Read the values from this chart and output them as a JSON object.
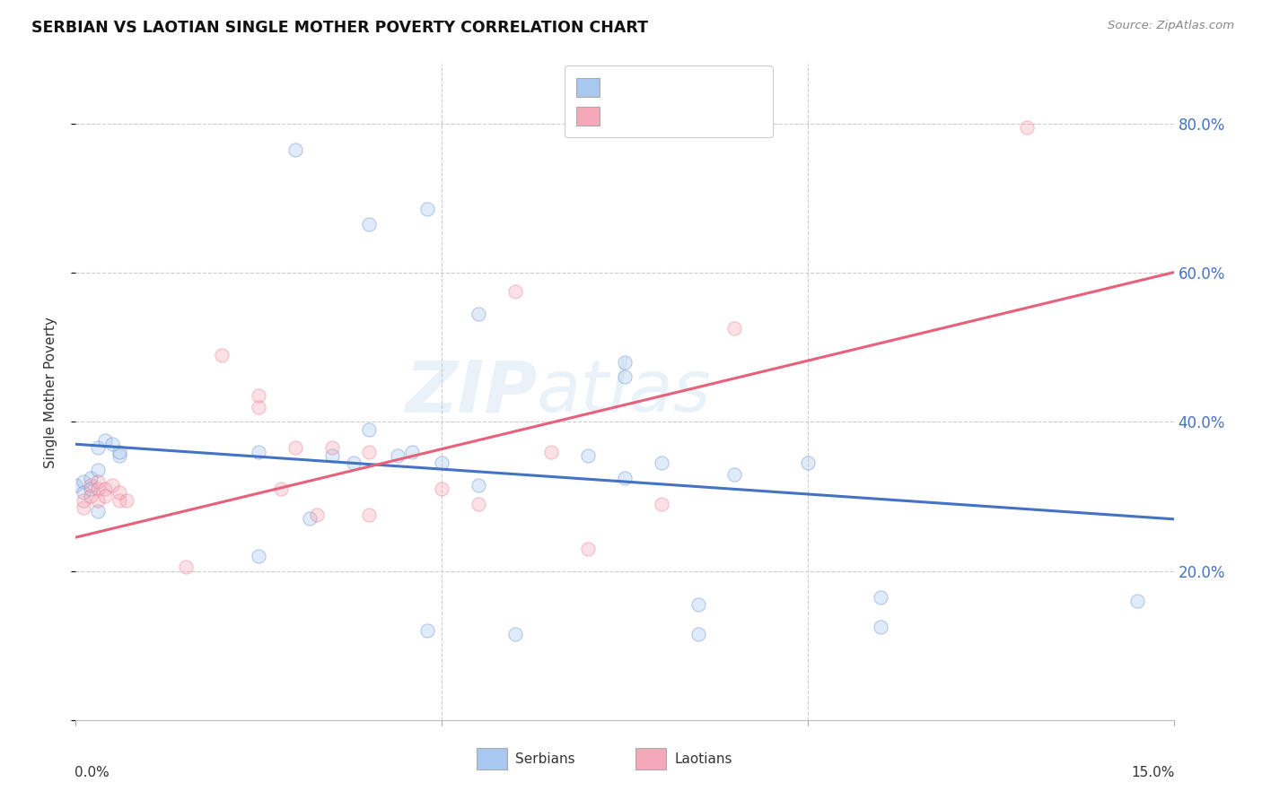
{
  "title": "SERBIAN VS LAOTIAN SINGLE MOTHER POVERTY CORRELATION CHART",
  "source": "Source: ZipAtlas.com",
  "ylabel": "Single Mother Poverty",
  "legend_label_serbian": "Serbians",
  "legend_label_laotian": "Laotians",
  "watermark": "ZIPatlas",
  "yticks": [
    0.0,
    0.2,
    0.4,
    0.6,
    0.8
  ],
  "ytick_labels": [
    "",
    "20.0%",
    "40.0%",
    "60.0%",
    "80.0%"
  ],
  "xlim": [
    0.0,
    0.15
  ],
  "ylim": [
    0.0,
    0.88
  ],
  "serbian_color": "#a8c8f0",
  "laotian_color": "#f4a8b8",
  "serbian_line_color": "#4472c4",
  "laotian_line_color": "#e8607a",
  "serbian_points": [
    [
      0.0,
      0.315
    ],
    [
      0.001,
      0.32
    ],
    [
      0.001,
      0.305
    ],
    [
      0.002,
      0.325
    ],
    [
      0.002,
      0.31
    ],
    [
      0.003,
      0.365
    ],
    [
      0.003,
      0.335
    ],
    [
      0.003,
      0.28
    ],
    [
      0.004,
      0.375
    ],
    [
      0.005,
      0.37
    ],
    [
      0.006,
      0.355
    ],
    [
      0.006,
      0.36
    ],
    [
      0.025,
      0.36
    ],
    [
      0.025,
      0.22
    ],
    [
      0.032,
      0.27
    ],
    [
      0.035,
      0.355
    ],
    [
      0.038,
      0.345
    ],
    [
      0.04,
      0.39
    ],
    [
      0.044,
      0.355
    ],
    [
      0.046,
      0.36
    ],
    [
      0.05,
      0.345
    ],
    [
      0.055,
      0.315
    ],
    [
      0.07,
      0.355
    ],
    [
      0.075,
      0.46
    ],
    [
      0.075,
      0.325
    ],
    [
      0.08,
      0.345
    ],
    [
      0.09,
      0.33
    ],
    [
      0.1,
      0.345
    ],
    [
      0.11,
      0.165
    ],
    [
      0.145,
      0.16
    ],
    [
      0.03,
      0.765
    ],
    [
      0.04,
      0.665
    ],
    [
      0.048,
      0.685
    ],
    [
      0.055,
      0.545
    ],
    [
      0.075,
      0.48
    ],
    [
      0.048,
      0.12
    ],
    [
      0.06,
      0.115
    ],
    [
      0.085,
      0.115
    ],
    [
      0.085,
      0.155
    ],
    [
      0.11,
      0.125
    ]
  ],
  "laotian_points": [
    [
      0.001,
      0.285
    ],
    [
      0.001,
      0.295
    ],
    [
      0.002,
      0.3
    ],
    [
      0.002,
      0.315
    ],
    [
      0.003,
      0.32
    ],
    [
      0.003,
      0.31
    ],
    [
      0.003,
      0.295
    ],
    [
      0.004,
      0.31
    ],
    [
      0.004,
      0.3
    ],
    [
      0.005,
      0.315
    ],
    [
      0.006,
      0.295
    ],
    [
      0.006,
      0.305
    ],
    [
      0.007,
      0.295
    ],
    [
      0.015,
      0.205
    ],
    [
      0.02,
      0.49
    ],
    [
      0.025,
      0.435
    ],
    [
      0.025,
      0.42
    ],
    [
      0.028,
      0.31
    ],
    [
      0.03,
      0.365
    ],
    [
      0.033,
      0.275
    ],
    [
      0.035,
      0.365
    ],
    [
      0.04,
      0.36
    ],
    [
      0.04,
      0.275
    ],
    [
      0.05,
      0.31
    ],
    [
      0.055,
      0.29
    ],
    [
      0.065,
      0.36
    ],
    [
      0.07,
      0.23
    ],
    [
      0.08,
      0.29
    ],
    [
      0.09,
      0.525
    ],
    [
      0.13,
      0.795
    ],
    [
      0.06,
      0.575
    ]
  ],
  "serbian_intercept": 0.37,
  "serbian_slope": -0.67,
  "laotian_intercept": 0.245,
  "laotian_slope": 2.37,
  "marker_size": 120,
  "line_width": 2.2,
  "dot_alpha": 0.35,
  "dot_edge_alpha": 0.7
}
